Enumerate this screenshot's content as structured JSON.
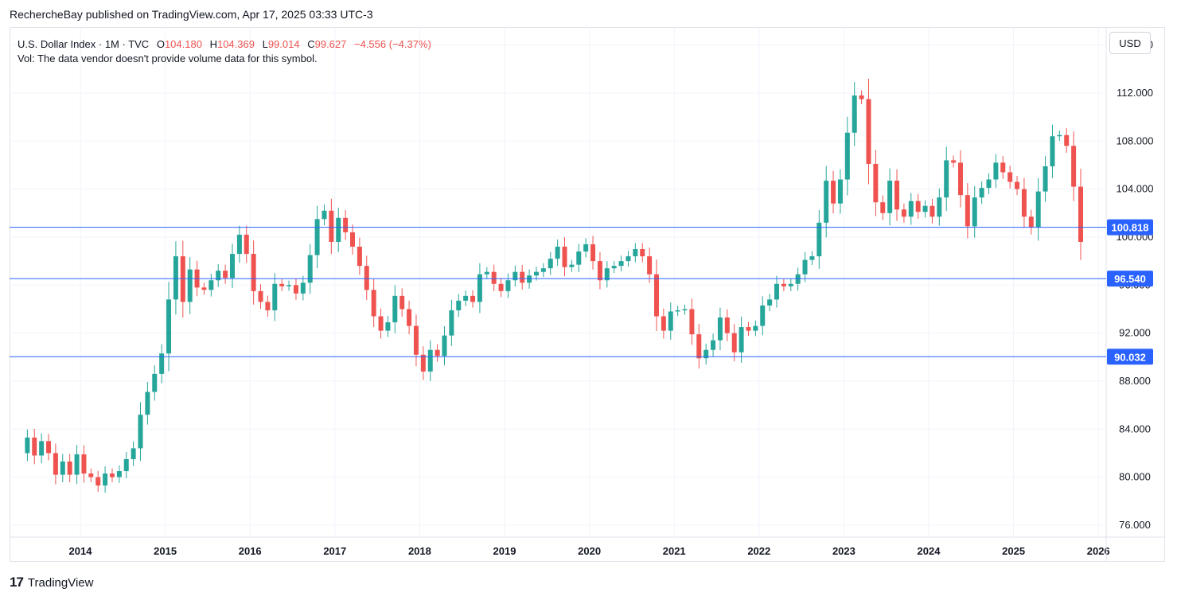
{
  "header": {
    "publisher_line": "RechercheBay published on TradingView.com, Apr 17, 2025 03:33 UTC-3"
  },
  "legend": {
    "symbol": "U.S. Dollar Index · 1M · TVC",
    "open_label": "O",
    "open": "104.180",
    "high_label": "H",
    "high": "104.369",
    "low_label": "L",
    "low": "99.014",
    "close_label": "C",
    "close": "99.627",
    "change": "−4.556 (−4.37%)",
    "vol_text": "Vol: The data vendor doesn't provide volume data for this symbol."
  },
  "currency_button": "USD",
  "footer": {
    "logo_mark": "17",
    "logo_text": "TradingView"
  },
  "colors": {
    "up": "#26a69a",
    "down": "#ef5350",
    "hline": "#2962ff",
    "grid": "#f0f3fa"
  },
  "chart_data": {
    "type": "candlestick",
    "timeframe": "1M",
    "ylim": [
      75.0,
      117.5
    ],
    "y_ticks": [
      "76.000",
      "80.000",
      "84.000",
      "88.000",
      "92.000",
      "96.000",
      "100.000",
      "104.000",
      "108.000",
      "112.000",
      "116.000"
    ],
    "x_ticks": [
      "2014",
      "2015",
      "2016",
      "2017",
      "2018",
      "2019",
      "2020",
      "2021",
      "2022",
      "2023",
      "2024",
      "2025",
      "2026"
    ],
    "horizontal_lines": [
      {
        "value": 100.818,
        "label": "100.818"
      },
      {
        "value": 96.54,
        "label": "96.540"
      },
      {
        "value": 90.032,
        "label": "90.032"
      }
    ],
    "start": "2013-05",
    "closes": [
      83.3,
      81.8,
      83.0,
      82.0,
      80.2,
      81.3,
      80.2,
      81.9,
      80.3,
      80.0,
      79.3,
      80.3,
      80.0,
      80.5,
      81.5,
      82.4,
      85.2,
      87.1,
      88.6,
      90.3,
      94.8,
      98.4,
      94.6,
      97.3,
      95.8,
      95.6,
      96.4,
      97.2,
      96.6,
      98.6,
      100.2,
      98.6,
      95.5,
      94.6,
      93.9,
      96.1,
      95.9,
      96.0,
      95.3,
      96.2,
      98.5,
      101.5,
      102.2,
      99.6,
      101.6,
      100.4,
      99.2,
      97.6,
      95.6,
      93.4,
      92.2,
      92.9,
      95.1,
      94.0,
      92.6,
      90.2,
      88.8,
      90.6,
      90.1,
      91.8,
      93.9,
      94.7,
      95.1,
      94.6,
      96.9,
      97.1,
      96.1,
      95.5,
      96.4,
      97.1,
      96.2,
      96.8,
      97.1,
      97.4,
      98.2,
      99.2,
      97.5,
      97.7,
      98.8,
      99.4,
      98.0,
      96.4,
      97.4,
      97.6,
      98.0,
      98.4,
      99.0,
      98.4,
      96.9,
      93.4,
      92.2,
      93.8,
      93.9,
      94.0,
      91.9,
      89.9,
      90.6,
      91.4,
      93.3,
      92.0,
      90.4,
      92.5,
      92.2,
      92.6,
      94.3,
      94.8,
      96.1,
      95.9,
      96.1,
      96.9,
      98.1,
      98.4,
      101.2,
      104.7,
      102.8,
      104.8,
      108.7,
      111.8,
      111.5,
      106.1,
      102.9,
      102.0,
      104.7,
      102.3,
      101.7,
      103.0,
      102.1,
      102.6,
      101.7,
      103.3,
      106.4,
      106.2,
      103.5,
      100.9,
      103.3,
      104.1,
      104.8,
      106.2,
      105.4,
      104.6,
      104.0,
      101.7,
      100.8,
      103.8,
      105.9,
      108.4,
      108.5,
      107.6,
      104.2,
      99.6
    ]
  }
}
